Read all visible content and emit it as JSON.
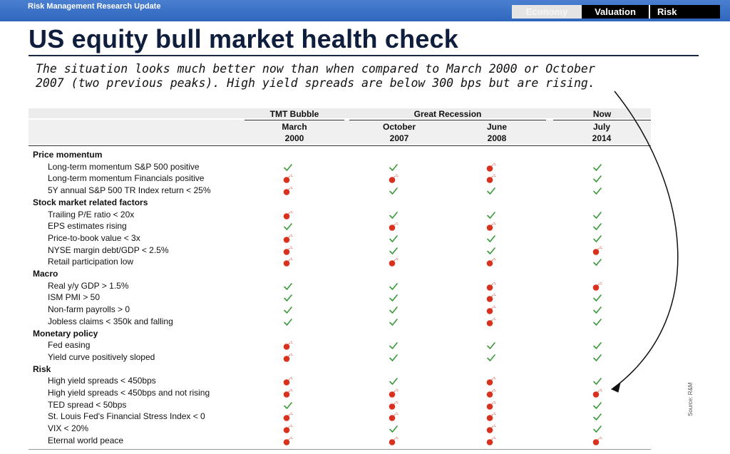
{
  "header": {
    "report_name": "Risk Management Research Update",
    "tabs": [
      "Economy",
      "Valuation",
      "Risk"
    ]
  },
  "title": "US equity bull market health check",
  "note": {
    "line1": "The situation looks much better now than when compared to March 2000 or October",
    "line2": "2007 (two previous peaks). High yield spreads are below 300 bps but are rising."
  },
  "table": {
    "groups": [
      "TMT Bubble",
      "Great Recession",
      "Now"
    ],
    "columns": [
      {
        "month": "March",
        "year": "2000"
      },
      {
        "month": "October",
        "year": "2007"
      },
      {
        "month": "June",
        "year": "2008"
      },
      {
        "month": "July",
        "year": "2014"
      }
    ],
    "sections": [
      {
        "name": "Price momentum",
        "rows": [
          {
            "label": "Long-term momentum S&P 500 positive",
            "marks": [
              "check",
              "check",
              "bomb",
              "check"
            ]
          },
          {
            "label": "Long-term momentum Financials positive",
            "marks": [
              "bomb",
              "bomb",
              "bomb",
              "check"
            ]
          },
          {
            "label": "5Y annual S&P 500 TR Index return < 25%",
            "marks": [
              "bomb",
              "check",
              "check",
              "check"
            ]
          }
        ]
      },
      {
        "name": "Stock market related factors",
        "rows": [
          {
            "label": "Trailing P/E ratio < 20x",
            "marks": [
              "bomb",
              "check",
              "check",
              "check"
            ]
          },
          {
            "label": "EPS estimates rising",
            "marks": [
              "check",
              "bomb",
              "bomb",
              "check"
            ]
          },
          {
            "label": "Price-to-book value < 3x",
            "marks": [
              "bomb",
              "check",
              "check",
              "check"
            ]
          },
          {
            "label": "NYSE margin debt/GDP < 2.5%",
            "marks": [
              "bomb",
              "check",
              "check",
              "bomb"
            ]
          },
          {
            "label": "Retail participation low",
            "marks": [
              "bomb",
              "bomb",
              "bomb",
              "check"
            ]
          }
        ]
      },
      {
        "name": "Macro",
        "rows": [
          {
            "label": "Real y/y GDP > 1.5%",
            "marks": [
              "check",
              "check",
              "bomb",
              "bomb"
            ]
          },
          {
            "label": "ISM PMI > 50",
            "marks": [
              "check",
              "check",
              "bomb",
              "check"
            ]
          },
          {
            "label": "Non-farm payrolls > 0",
            "marks": [
              "check",
              "check",
              "bomb",
              "check"
            ]
          },
          {
            "label": "Jobless claims < 350k and falling",
            "marks": [
              "check",
              "check",
              "bomb",
              "check"
            ]
          }
        ]
      },
      {
        "name": "Monetary policy",
        "rows": [
          {
            "label": "Fed easing",
            "marks": [
              "bomb",
              "check",
              "check",
              "check"
            ]
          },
          {
            "label": "Yield curve positively sloped",
            "marks": [
              "bomb",
              "check",
              "check",
              "check"
            ]
          }
        ]
      },
      {
        "name": "Risk",
        "rows": [
          {
            "label": "High yield spreads < 450bps",
            "marks": [
              "bomb",
              "check",
              "bomb",
              "check"
            ]
          },
          {
            "label": "High yield spreads < 450bps and not rising",
            "marks": [
              "bomb",
              "bomb",
              "bomb",
              "bomb"
            ]
          },
          {
            "label": "TED spread < 50bps",
            "marks": [
              "check",
              "bomb",
              "bomb",
              "check"
            ]
          },
          {
            "label": "St. Louis Fed's Financial Stress Index < 0",
            "marks": [
              "bomb",
              "bomb",
              "bomb",
              "check"
            ]
          },
          {
            "label": "VIX < 20%",
            "marks": [
              "bomb",
              "check",
              "bomb",
              "check"
            ]
          },
          {
            "label": "Eternal world peace",
            "marks": [
              "bomb",
              "bomb",
              "bomb",
              "bomb"
            ]
          }
        ]
      }
    ]
  },
  "source": "Source: R&M",
  "colors": {
    "check": "#3a9a3a",
    "bomb": "#d8321e",
    "banner": "#2f66bd",
    "title": "#0e1e3c"
  },
  "icons": {
    "check": "check-icon",
    "bomb": "bomb-icon"
  }
}
